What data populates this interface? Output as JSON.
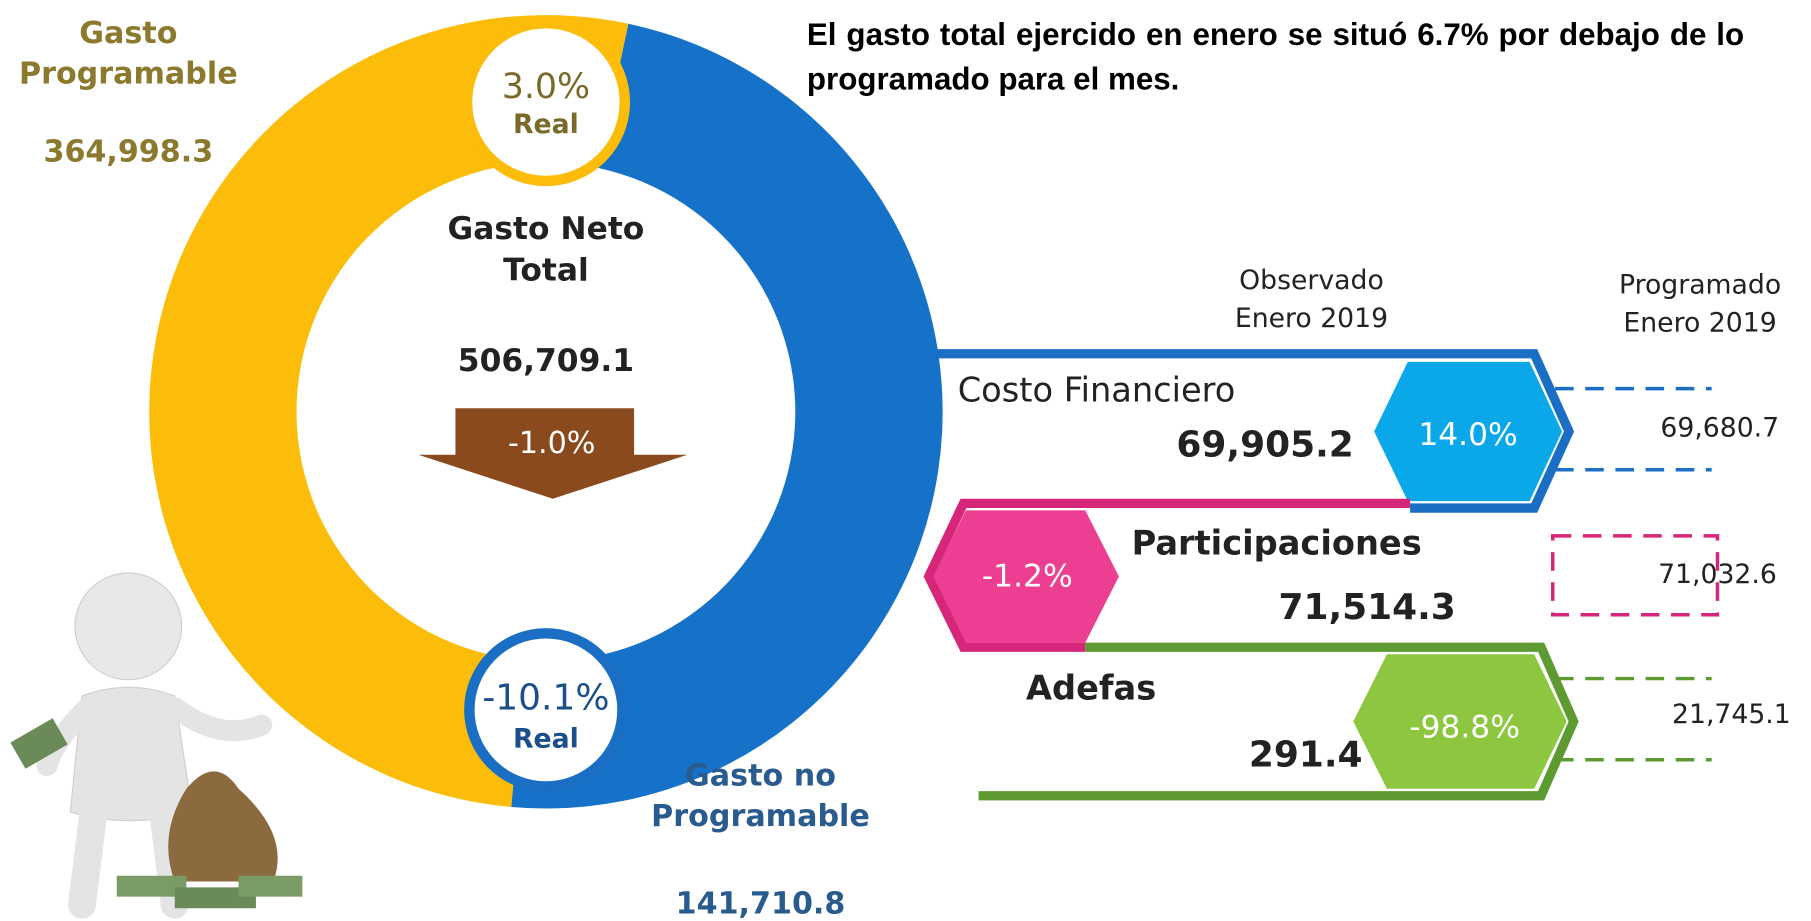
{
  "headline": "El gasto total ejercido en enero se situó 6.7% por debajo de lo programado para el mes.",
  "donut": {
    "center_title": "Gasto Neto Total",
    "center_value": "506,709.1",
    "center_change": "-1.0%",
    "programable": {
      "label": "Gasto Programable",
      "value": "364,998.3",
      "change": "3.0%",
      "change_note": "Real"
    },
    "no_programable": {
      "label": "Gasto no Programable",
      "value": "141,710.8",
      "change": "-10.1%",
      "change_note": "Real"
    }
  },
  "columns": {
    "observed": "Observado Enero 2019",
    "programmed": "Programado Enero 2019"
  },
  "items": [
    {
      "name": "Costo Financiero",
      "observed": "69,905.2",
      "change": "14.0%",
      "programmed": "69,680.7"
    },
    {
      "name": "Participaciones",
      "observed": "71,514.3",
      "change": "-1.2%",
      "programmed": "71,032.6"
    },
    {
      "name": "Adefas",
      "observed": "291.4",
      "change": "-98.8%",
      "programmed": "21,745.1"
    }
  ]
}
